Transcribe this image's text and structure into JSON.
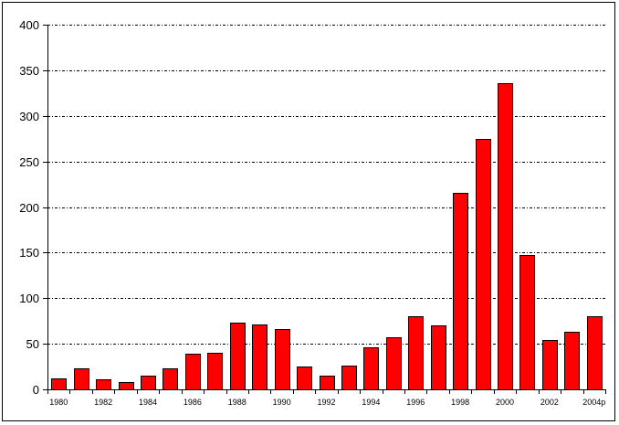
{
  "chart_data": {
    "type": "bar",
    "categories": [
      "1980",
      "1981",
      "1982",
      "1983",
      "1984",
      "1985",
      "1986",
      "1987",
      "1988",
      "1989",
      "1990",
      "1991",
      "1992",
      "1993",
      "1994",
      "1995",
      "1996",
      "1997",
      "1998",
      "1999",
      "2000",
      "2001",
      "2002",
      "2003",
      "2004p"
    ],
    "x_tick_labels": [
      "1980",
      "1982",
      "1984",
      "1986",
      "1988",
      "1990",
      "1992",
      "1994",
      "1996",
      "1998",
      "2000",
      "2002",
      "2004p"
    ],
    "values": [
      12,
      23,
      11,
      8,
      15,
      23,
      39,
      40,
      73,
      71,
      66,
      25,
      15,
      26,
      46,
      57,
      80,
      70,
      216,
      275,
      336,
      147,
      54,
      63,
      80
    ],
    "title": "",
    "xlabel": "",
    "ylabel": "",
    "ylim": [
      0,
      400
    ],
    "y_ticks": [
      0,
      50,
      100,
      150,
      200,
      250,
      300,
      350,
      400
    ],
    "grid": "horizontal dashed",
    "legend": "none",
    "bar_color": "#ff0000",
    "bar_edge_color": "#000000"
  }
}
